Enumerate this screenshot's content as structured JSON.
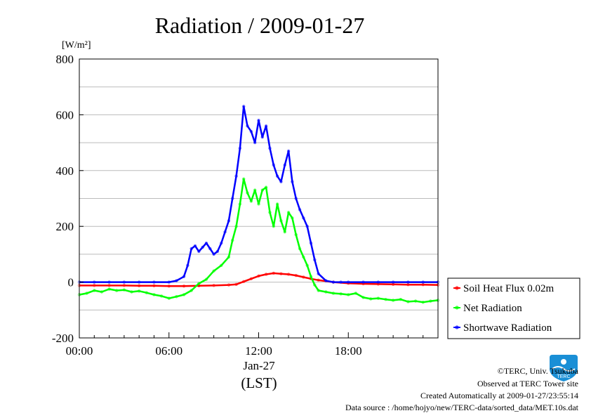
{
  "chart_data": {
    "type": "line",
    "title": "Radiation / 2009-01-27",
    "ylabel": "[W/m²]",
    "xlabel": "(LST)",
    "date_label": "Jan-27",
    "x_unit": "hour (LST)",
    "xlim": [
      0,
      24
    ],
    "ylim": [
      -200,
      800
    ],
    "x_ticks": [
      {
        "value": 0,
        "label": "00:00"
      },
      {
        "value": 6,
        "label": "06:00"
      },
      {
        "value": 12,
        "label": "12:00"
      },
      {
        "value": 18,
        "label": "18:00"
      }
    ],
    "y_ticks": [
      {
        "value": -200,
        "label": "-200"
      },
      {
        "value": 0,
        "label": "0"
      },
      {
        "value": 200,
        "label": "200"
      },
      {
        "value": 400,
        "label": "400"
      },
      {
        "value": 600,
        "label": "600"
      },
      {
        "value": 800,
        "label": "800"
      }
    ],
    "grid": true,
    "legend_position": "right-bottom",
    "series": [
      {
        "name": "Soil Heat Flux 0.02m",
        "color": "#ff0000",
        "x": [
          0,
          1,
          2,
          3,
          4,
          5,
          6,
          7,
          8,
          9,
          10,
          10.5,
          11,
          11.5,
          12,
          12.5,
          13,
          13.5,
          14,
          14.5,
          15,
          15.5,
          16,
          17,
          18,
          19,
          20,
          21,
          22,
          23,
          24
        ],
        "y": [
          -12,
          -12,
          -12,
          -12,
          -13,
          -13,
          -14,
          -14,
          -13,
          -12,
          -10,
          -8,
          2,
          12,
          22,
          28,
          32,
          30,
          28,
          24,
          18,
          12,
          7,
          0,
          -4,
          -6,
          -7,
          -8,
          -9,
          -9,
          -10
        ]
      },
      {
        "name": "Net Radiation",
        "color": "#00ff00",
        "x": [
          0,
          0.5,
          1,
          1.5,
          2,
          2.5,
          3,
          3.5,
          4,
          4.5,
          5,
          5.5,
          6,
          6.5,
          7,
          7.5,
          8,
          8.5,
          9,
          9.5,
          10,
          10.25,
          10.5,
          10.75,
          11,
          11.25,
          11.5,
          11.75,
          12,
          12.25,
          12.5,
          12.75,
          13,
          13.25,
          13.5,
          13.75,
          14,
          14.25,
          14.5,
          14.75,
          15,
          15.25,
          15.5,
          15.75,
          16,
          16.5,
          17,
          17.5,
          18,
          18.5,
          19,
          19.5,
          20,
          20.5,
          21,
          21.5,
          22,
          22.5,
          23,
          23.5,
          24
        ],
        "y": [
          -45,
          -40,
          -30,
          -35,
          -25,
          -30,
          -28,
          -35,
          -32,
          -38,
          -45,
          -50,
          -58,
          -52,
          -45,
          -30,
          -5,
          10,
          40,
          60,
          90,
          150,
          200,
          280,
          370,
          320,
          290,
          330,
          280,
          330,
          340,
          250,
          200,
          280,
          220,
          180,
          250,
          230,
          170,
          120,
          90,
          60,
          20,
          -10,
          -30,
          -35,
          -40,
          -42,
          -45,
          -40,
          -55,
          -60,
          -58,
          -62,
          -65,
          -62,
          -70,
          -68,
          -72,
          -68,
          -65
        ]
      },
      {
        "name": "Shortwave Radiation",
        "color": "#0000ff",
        "x": [
          0,
          1,
          2,
          3,
          4,
          5,
          6,
          6.5,
          7,
          7.25,
          7.5,
          7.75,
          8,
          8.25,
          8.5,
          8.75,
          9,
          9.25,
          9.5,
          9.75,
          10,
          10.25,
          10.5,
          10.75,
          11,
          11.25,
          11.5,
          11.75,
          12,
          12.25,
          12.5,
          12.75,
          13,
          13.25,
          13.5,
          13.75,
          14,
          14.25,
          14.5,
          14.75,
          15,
          15.25,
          15.5,
          15.75,
          16,
          16.5,
          17,
          17.5,
          18,
          19,
          20,
          21,
          22,
          23,
          24
        ],
        "y": [
          0,
          0,
          0,
          0,
          0,
          0,
          0,
          5,
          20,
          60,
          120,
          130,
          110,
          125,
          140,
          120,
          100,
          110,
          140,
          180,
          220,
          300,
          380,
          480,
          630,
          560,
          540,
          500,
          580,
          520,
          560,
          480,
          420,
          380,
          360,
          420,
          470,
          360,
          300,
          260,
          230,
          200,
          140,
          80,
          30,
          5,
          0,
          0,
          0,
          0,
          0,
          0,
          0,
          0,
          0
        ]
      }
    ]
  },
  "footer": {
    "copyright": "©TERC, Univ. Tsukuba",
    "site": "Observed at TERC Tower site",
    "created": "Created Automatically at 2009-01-27/23:55:14",
    "source": "Data source : /home/hojyo/new/TERC-data/sorted_data/MET.10s.dat"
  },
  "logo": {
    "text": "TERC",
    "color": "#1a8fd6",
    "icon": "terc-logo-icon"
  }
}
